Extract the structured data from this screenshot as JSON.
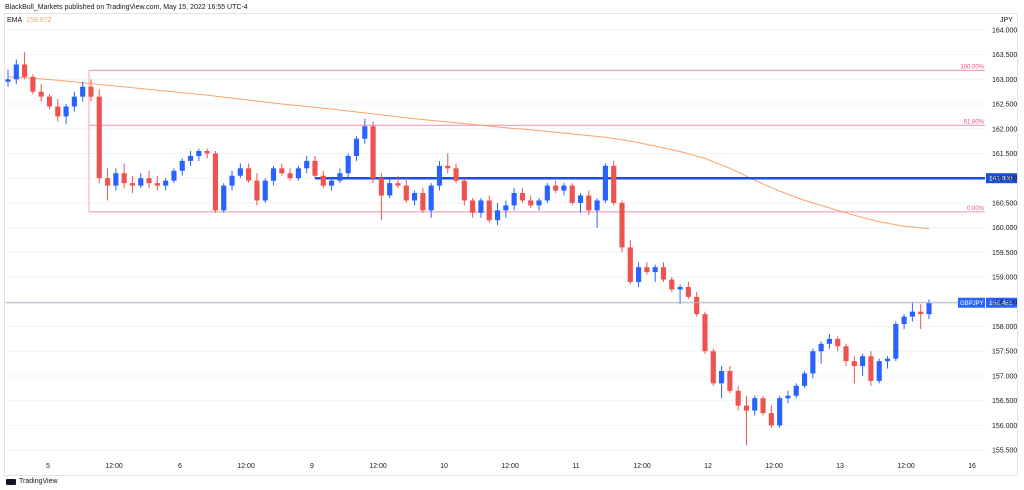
{
  "header": {
    "publisher_line": "BlackBull_Markets published on TradingView.com, May 15, 2022 16:55 UTC-4",
    "ema_label": "EMA",
    "ema_value": "159.972",
    "brand": "TradingView"
  },
  "chart_data": {
    "type": "candlestick",
    "symbol": "GBPJPY",
    "currency_label": "JPY",
    "y_range": [
      155.3,
      164.2
    ],
    "y_ticks": [
      "164.000",
      "163.500",
      "163.000",
      "162.500",
      "162.000",
      "161.500",
      "161.000",
      "160.500",
      "160.000",
      "159.500",
      "159.000",
      "158.500",
      "158.000",
      "157.500",
      "157.000",
      "156.500",
      "156.000",
      "155.500"
    ],
    "x_ticks": [
      "5",
      "12:00",
      "6",
      "12:00",
      "9",
      "12:00",
      "10",
      "12:00",
      "11",
      "12:00",
      "12",
      "12:00",
      "13",
      "12:00",
      "16"
    ],
    "last_price": {
      "label": "GBPJPY",
      "value": "158.481",
      "price": 158.481
    },
    "horizontal_line": {
      "value": "161.000",
      "price": 161.0,
      "color": "#1e4fd8"
    },
    "fibonacci": [
      {
        "label": "100.00%",
        "price": 163.18
      },
      {
        "label": "61.80%",
        "price": 162.07
      },
      {
        "label": "0.00%",
        "price": 160.32
      }
    ],
    "ema_color": "#f7a26b",
    "up_color": "#2962ff",
    "down_color": "#ef5350",
    "ema": [
      163.05,
      163.02,
      162.98,
      162.93,
      162.88,
      162.83,
      162.78,
      162.73,
      162.68,
      162.62,
      162.56,
      162.5,
      162.45,
      162.4,
      162.34,
      162.28,
      162.22,
      162.17,
      162.12,
      162.07,
      162.02,
      161.98,
      161.93,
      161.88,
      161.83,
      161.75,
      161.65,
      161.54,
      161.4,
      161.2,
      160.96,
      160.74,
      160.55,
      160.4,
      160.25,
      160.12,
      160.03,
      159.98
    ],
    "candles": [
      [
        162.95,
        163.2,
        162.85,
        163.0
      ],
      [
        163.0,
        163.4,
        162.9,
        163.3
      ],
      [
        163.3,
        163.55,
        163.0,
        163.05
      ],
      [
        163.05,
        163.1,
        162.7,
        162.75
      ],
      [
        162.75,
        162.9,
        162.55,
        162.65
      ],
      [
        162.65,
        162.7,
        162.4,
        162.45
      ],
      [
        162.45,
        162.6,
        162.15,
        162.25
      ],
      [
        162.25,
        162.5,
        162.1,
        162.45
      ],
      [
        162.45,
        162.75,
        162.35,
        162.65
      ],
      [
        162.65,
        162.95,
        162.55,
        162.85
      ],
      [
        162.85,
        163.0,
        162.55,
        162.65
      ],
      [
        162.65,
        162.8,
        160.9,
        161.0
      ],
      [
        161.0,
        161.2,
        160.55,
        160.85
      ],
      [
        160.85,
        161.2,
        160.75,
        161.1
      ],
      [
        161.1,
        161.3,
        160.8,
        160.9
      ],
      [
        160.9,
        161.05,
        160.7,
        160.85
      ],
      [
        160.85,
        161.1,
        160.8,
        161.0
      ],
      [
        161.0,
        161.15,
        160.8,
        160.9
      ],
      [
        160.9,
        161.05,
        160.75,
        160.85
      ],
      [
        160.85,
        161.0,
        160.75,
        160.95
      ],
      [
        160.95,
        161.2,
        160.9,
        161.15
      ],
      [
        161.15,
        161.4,
        161.05,
        161.35
      ],
      [
        161.35,
        161.55,
        161.25,
        161.45
      ],
      [
        161.45,
        161.6,
        161.35,
        161.55
      ],
      [
        161.55,
        161.6,
        161.4,
        161.5
      ],
      [
        161.5,
        161.55,
        160.3,
        160.35
      ],
      [
        160.35,
        160.9,
        160.3,
        160.85
      ],
      [
        160.85,
        161.15,
        160.75,
        161.05
      ],
      [
        161.05,
        161.3,
        161.0,
        161.2
      ],
      [
        161.2,
        161.3,
        160.9,
        160.95
      ],
      [
        160.95,
        161.1,
        160.45,
        160.55
      ],
      [
        160.55,
        161.0,
        160.5,
        160.95
      ],
      [
        160.95,
        161.25,
        160.85,
        161.2
      ],
      [
        161.2,
        161.3,
        161.05,
        161.1
      ],
      [
        161.1,
        161.2,
        160.95,
        161.0
      ],
      [
        161.0,
        161.25,
        160.95,
        161.2
      ],
      [
        161.2,
        161.45,
        161.1,
        161.35
      ],
      [
        161.35,
        161.45,
        161.0,
        161.05
      ],
      [
        161.05,
        161.15,
        160.8,
        160.85
      ],
      [
        160.85,
        161.0,
        160.75,
        160.95
      ],
      [
        160.95,
        161.2,
        160.9,
        161.1
      ],
      [
        161.1,
        161.5,
        161.0,
        161.45
      ],
      [
        161.45,
        161.85,
        161.35,
        161.8
      ],
      [
        161.8,
        162.2,
        161.7,
        162.05
      ],
      [
        162.05,
        162.15,
        160.9,
        161.0
      ],
      [
        161.0,
        161.1,
        160.15,
        160.65
      ],
      [
        160.65,
        161.0,
        160.6,
        160.9
      ],
      [
        160.9,
        161.05,
        160.8,
        160.85
      ],
      [
        160.85,
        161.0,
        160.5,
        160.55
      ],
      [
        160.55,
        160.75,
        160.45,
        160.7
      ],
      [
        160.7,
        160.8,
        160.3,
        160.35
      ],
      [
        160.35,
        160.9,
        160.2,
        160.85
      ],
      [
        160.85,
        161.35,
        160.75,
        161.25
      ],
      [
        161.25,
        161.5,
        161.1,
        161.2
      ],
      [
        161.2,
        161.3,
        160.9,
        160.95
      ],
      [
        160.95,
        161.0,
        160.45,
        160.55
      ],
      [
        160.55,
        160.6,
        160.2,
        160.3
      ],
      [
        160.3,
        160.6,
        160.2,
        160.55
      ],
      [
        160.55,
        160.65,
        160.1,
        160.15
      ],
      [
        160.15,
        160.5,
        160.05,
        160.35
      ],
      [
        160.35,
        160.55,
        160.2,
        160.45
      ],
      [
        160.45,
        160.8,
        160.35,
        160.7
      ],
      [
        160.7,
        160.8,
        160.5,
        160.55
      ],
      [
        160.55,
        160.65,
        160.4,
        160.45
      ],
      [
        160.45,
        160.6,
        160.35,
        160.55
      ],
      [
        160.55,
        160.9,
        160.5,
        160.85
      ],
      [
        160.85,
        160.95,
        160.7,
        160.75
      ],
      [
        160.75,
        160.9,
        160.65,
        160.85
      ],
      [
        160.85,
        160.9,
        160.45,
        160.5
      ],
      [
        160.5,
        160.7,
        160.3,
        160.65
      ],
      [
        160.65,
        160.75,
        160.25,
        160.35
      ],
      [
        160.35,
        160.6,
        160.0,
        160.55
      ],
      [
        160.55,
        161.3,
        160.5,
        161.25
      ],
      [
        161.25,
        161.35,
        160.45,
        160.5
      ],
      [
        160.5,
        160.55,
        159.5,
        159.6
      ],
      [
        159.6,
        159.75,
        158.85,
        158.9
      ],
      [
        158.9,
        159.3,
        158.8,
        159.2
      ],
      [
        159.2,
        159.3,
        159.05,
        159.1
      ],
      [
        159.1,
        159.25,
        158.9,
        159.2
      ],
      [
        159.2,
        159.3,
        158.9,
        158.95
      ],
      [
        158.95,
        159.0,
        158.7,
        158.75
      ],
      [
        158.75,
        158.85,
        158.45,
        158.8
      ],
      [
        158.8,
        158.9,
        158.55,
        158.6
      ],
      [
        158.6,
        158.7,
        158.2,
        158.25
      ],
      [
        158.25,
        158.3,
        157.45,
        157.5
      ],
      [
        157.5,
        157.55,
        156.8,
        156.85
      ],
      [
        156.85,
        157.2,
        156.55,
        157.1
      ],
      [
        157.1,
        157.2,
        156.65,
        156.7
      ],
      [
        156.7,
        156.8,
        156.3,
        156.4
      ],
      [
        156.4,
        156.6,
        155.6,
        156.3
      ],
      [
        156.3,
        156.6,
        156.2,
        156.55
      ],
      [
        156.55,
        156.6,
        156.2,
        156.25
      ],
      [
        156.25,
        156.4,
        155.95,
        156.0
      ],
      [
        156.0,
        156.6,
        155.95,
        156.55
      ],
      [
        156.55,
        156.7,
        156.45,
        156.6
      ],
      [
        156.6,
        156.85,
        156.55,
        156.8
      ],
      [
        156.8,
        157.1,
        156.75,
        157.05
      ],
      [
        157.05,
        157.55,
        156.95,
        157.5
      ],
      [
        157.5,
        157.7,
        157.25,
        157.65
      ],
      [
        157.65,
        157.85,
        157.55,
        157.75
      ],
      [
        157.75,
        157.8,
        157.5,
        157.6
      ],
      [
        157.6,
        157.65,
        157.2,
        157.3
      ],
      [
        157.3,
        157.4,
        156.85,
        157.2
      ],
      [
        157.2,
        157.45,
        157.0,
        157.4
      ],
      [
        157.4,
        157.5,
        156.8,
        156.9
      ],
      [
        156.9,
        157.35,
        156.85,
        157.3
      ],
      [
        157.3,
        157.4,
        157.15,
        157.35
      ],
      [
        157.35,
        158.1,
        157.3,
        158.05
      ],
      [
        158.05,
        158.25,
        157.95,
        158.2
      ],
      [
        158.2,
        158.5,
        158.1,
        158.3
      ],
      [
        158.3,
        158.45,
        157.95,
        158.25
      ],
      [
        158.25,
        158.55,
        158.15,
        158.48
      ]
    ]
  }
}
